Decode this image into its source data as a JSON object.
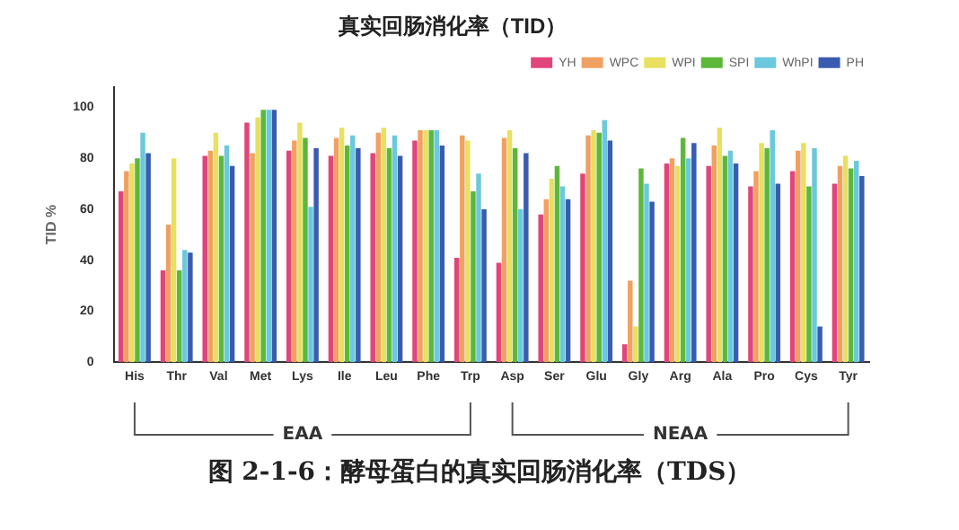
{
  "chart_data": {
    "type": "bar",
    "title": "真实回肠消化率（TID）",
    "ylabel": "TID %",
    "categories": [
      "His",
      "Thr",
      "Val",
      "Met",
      "Lys",
      "Ile",
      "Leu",
      "Phe",
      "Trp",
      "Asp",
      "Ser",
      "Glu",
      "Gly",
      "Arg",
      "Ala",
      "Pro",
      "Cys",
      "Tyr"
    ],
    "series": [
      {
        "name": "YH",
        "color": "#e0457b",
        "values": [
          67,
          36,
          81,
          94,
          83,
          81,
          82,
          87,
          41,
          39,
          58,
          74,
          7,
          78,
          77,
          69,
          75,
          70
        ]
      },
      {
        "name": "WPC",
        "color": "#f0a060",
        "values": [
          75,
          54,
          83,
          82,
          87,
          88,
          90,
          91,
          89,
          88,
          64,
          89,
          32,
          80,
          85,
          75,
          83,
          77
        ]
      },
      {
        "name": "WPI",
        "color": "#e8e060",
        "values": [
          78,
          80,
          90,
          96,
          94,
          92,
          92,
          91,
          87,
          91,
          72,
          91,
          14,
          77,
          92,
          86,
          86,
          81
        ]
      },
      {
        "name": "SPI",
        "color": "#5cb83a",
        "values": [
          80,
          36,
          81,
          99,
          88,
          85,
          84,
          91,
          67,
          84,
          77,
          90,
          76,
          88,
          81,
          84,
          69,
          76
        ]
      },
      {
        "name": "WhPI",
        "color": "#6cc8dc",
        "values": [
          90,
          44,
          85,
          99,
          61,
          89,
          89,
          91,
          74,
          60,
          69,
          95,
          70,
          80,
          83,
          91,
          84,
          79
        ]
      },
      {
        "name": "PH",
        "color": "#3a5cb0",
        "values": [
          82,
          43,
          77,
          99,
          84,
          84,
          81,
          85,
          60,
          82,
          64,
          87,
          63,
          86,
          78,
          70,
          14,
          73
        ]
      }
    ],
    "ylim": [
      0,
      108
    ],
    "yticks": [
      0,
      20,
      40,
      60,
      80,
      100
    ],
    "grid": false,
    "legend": "top right",
    "annotations": [
      "EAA",
      "NEAA",
      "图 2-1-6：酵母蛋白的真实回肠消化率（TDS）"
    ]
  }
}
